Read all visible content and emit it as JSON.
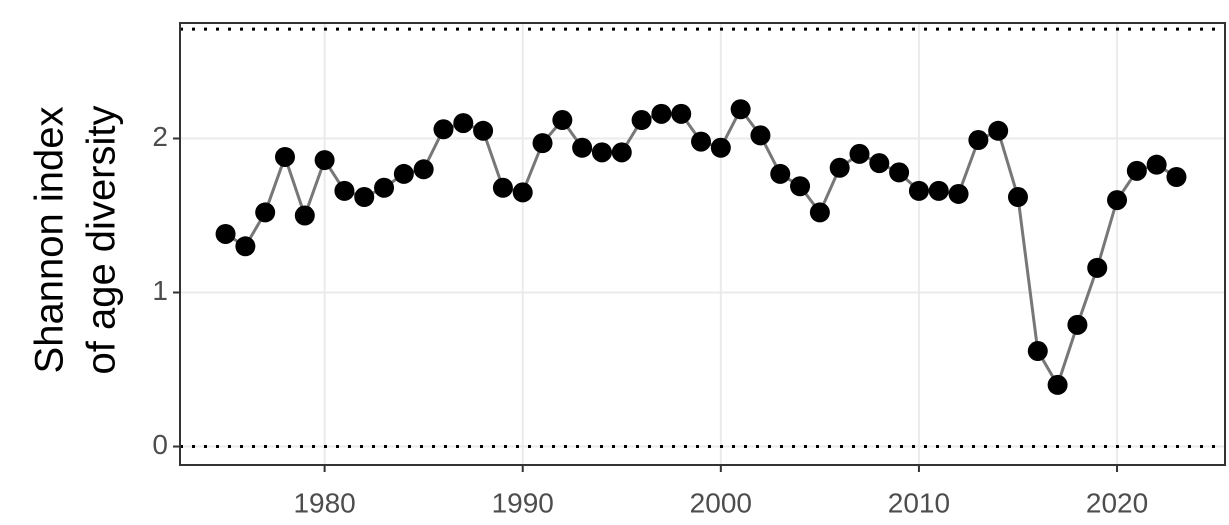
{
  "chart_data": {
    "type": "line",
    "ylabel": [
      "Shannon index",
      "of age diversity"
    ],
    "x": [
      1975,
      1976,
      1977,
      1978,
      1979,
      1980,
      1981,
      1982,
      1983,
      1984,
      1985,
      1986,
      1987,
      1988,
      1989,
      1990,
      1991,
      1992,
      1993,
      1994,
      1995,
      1996,
      1997,
      1998,
      1999,
      2000,
      2001,
      2002,
      2003,
      2004,
      2005,
      2006,
      2007,
      2008,
      2009,
      2010,
      2011,
      2012,
      2013,
      2014,
      2015,
      2016,
      2017,
      2018,
      2019,
      2020,
      2021,
      2022,
      2023
    ],
    "values": [
      1.38,
      1.3,
      1.52,
      1.88,
      1.5,
      1.86,
      1.66,
      1.62,
      1.68,
      1.77,
      1.8,
      2.06,
      2.1,
      2.05,
      1.68,
      1.65,
      1.97,
      2.12,
      1.94,
      1.91,
      1.91,
      2.12,
      2.16,
      2.16,
      1.98,
      1.94,
      2.19,
      2.02,
      1.77,
      1.69,
      1.52,
      1.81,
      1.9,
      1.84,
      1.78,
      1.66,
      1.66,
      1.64,
      1.99,
      2.05,
      1.62,
      0.62,
      0.4,
      0.79,
      1.16,
      1.6,
      1.79,
      1.83,
      1.75
    ],
    "line_color": "#777777",
    "marker_color": "#000000",
    "xlim": [
      1972.7,
      2025.45
    ],
    "xticks": [
      1980,
      1990,
      2000,
      2010,
      2020
    ],
    "ylim": [
      -0.12,
      2.75
    ],
    "yticks": [
      0,
      1,
      2
    ],
    "reference_lines": [
      0,
      2.71
    ],
    "grid": true
  }
}
